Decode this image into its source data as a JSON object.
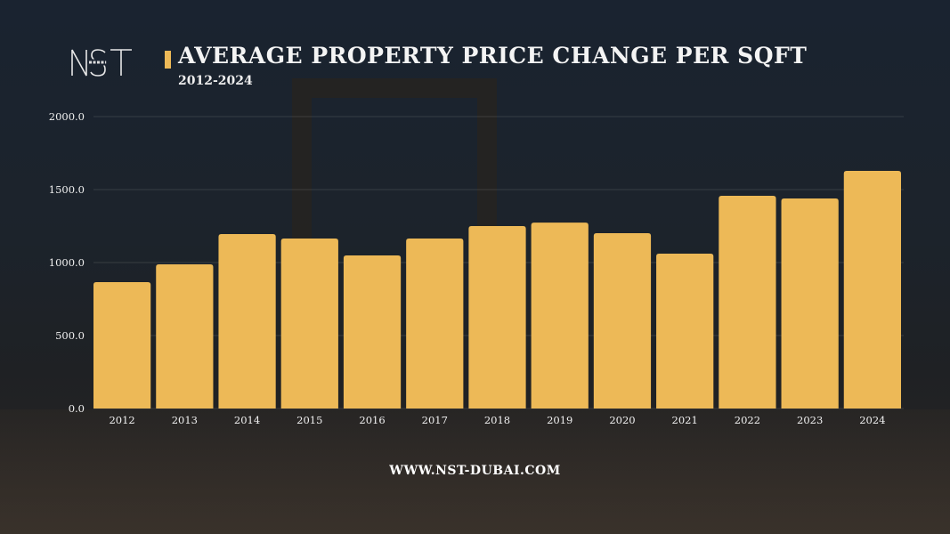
{
  "brand": {
    "logo_text": "NST",
    "logo_sub": "DUBAI",
    "website": "WWW.NST-DUBAI.COM"
  },
  "colors": {
    "bar": "#edb957",
    "accent": "#edb957",
    "background": "#1c232b"
  },
  "chart_data": {
    "type": "bar",
    "title": "AVERAGE PROPERTY PRICE CHANGE PER SQFT",
    "subtitle": "2012-2024",
    "xlabel": "",
    "ylabel": "",
    "categories": [
      "2012",
      "2013",
      "2014",
      "2015",
      "2016",
      "2017",
      "2018",
      "2019",
      "2020",
      "2021",
      "2022",
      "2023",
      "2024"
    ],
    "values": [
      866,
      988,
      1195,
      1165,
      1049,
      1165,
      1250,
      1274,
      1201,
      1061,
      1457,
      1439,
      1628
    ],
    "ylim": [
      0,
      2000
    ],
    "yticks": [
      "0.0",
      "500.0",
      "1000.0",
      "1500.0",
      "2000.0"
    ],
    "grid": true,
    "legend": "none"
  }
}
